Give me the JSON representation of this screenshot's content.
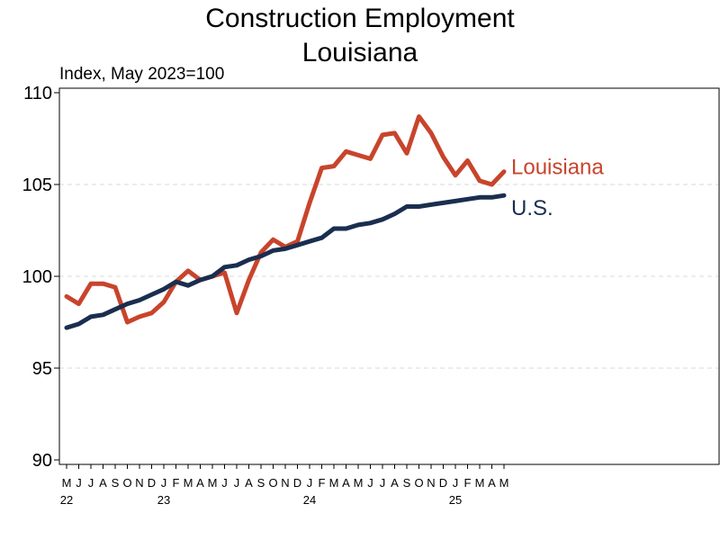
{
  "chart_data": {
    "type": "line",
    "title": [
      "Construction Employment",
      "Louisiana"
    ],
    "subtitle": "Index, May 2023=100",
    "ylim": [
      90,
      110
    ],
    "yticks": [
      90,
      95,
      100,
      105,
      110
    ],
    "x_month_labels": [
      "M",
      "J",
      "J",
      "A",
      "S",
      "O",
      "N",
      "D",
      "J",
      "F",
      "M",
      "A",
      "M",
      "J",
      "J",
      "A",
      "S",
      "O",
      "N",
      "D",
      "J",
      "F",
      "M",
      "A",
      "M",
      "J",
      "J",
      "A",
      "S",
      "O",
      "N",
      "D",
      "J",
      "F",
      "M",
      "A",
      "M"
    ],
    "x_year_labels": [
      {
        "index": 0,
        "label": "22"
      },
      {
        "index": 8,
        "label": "23"
      },
      {
        "index": 20,
        "label": "24"
      },
      {
        "index": 32,
        "label": "25"
      }
    ],
    "grid": "horizontal-dashed",
    "series": [
      {
        "name": "Louisiana",
        "color": "#c8442c",
        "values": [
          98.9,
          98.5,
          99.6,
          99.6,
          99.4,
          97.5,
          97.8,
          98.0,
          98.6,
          99.7,
          100.3,
          99.8,
          100.0,
          100.2,
          98.0,
          99.8,
          101.3,
          102.0,
          101.6,
          101.9,
          104.0,
          105.9,
          106.0,
          106.8,
          106.6,
          106.4,
          107.7,
          107.8,
          106.7,
          108.7,
          107.8,
          106.5,
          105.5,
          106.3,
          105.2,
          105.0,
          105.7
        ]
      },
      {
        "name": "U.S.",
        "color": "#1a2e4f",
        "values": [
          97.2,
          97.4,
          97.8,
          97.9,
          98.2,
          98.5,
          98.7,
          99.0,
          99.3,
          99.7,
          99.5,
          99.8,
          100.0,
          100.5,
          100.6,
          100.9,
          101.1,
          101.4,
          101.5,
          101.7,
          101.9,
          102.1,
          102.6,
          102.6,
          102.8,
          102.9,
          103.1,
          103.4,
          103.8,
          103.8,
          103.9,
          104.0,
          104.1,
          104.2,
          104.3,
          104.3,
          104.4
        ]
      }
    ]
  }
}
